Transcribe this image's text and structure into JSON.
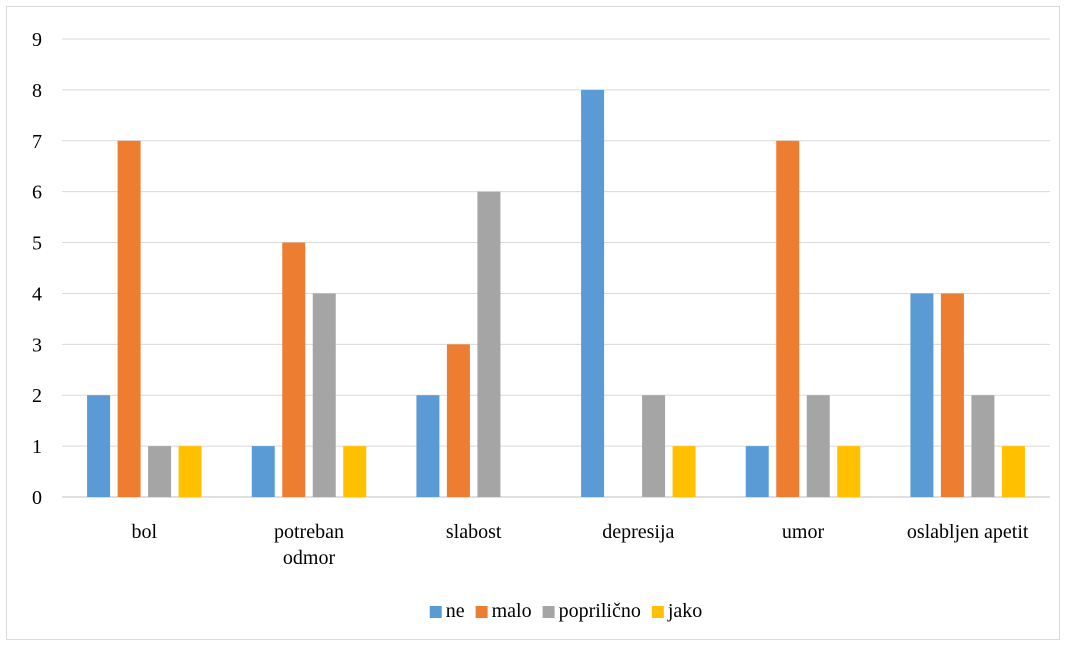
{
  "chart_data": {
    "type": "bar",
    "categories": [
      [
        "bol"
      ],
      [
        "potreban",
        "odmor"
      ],
      [
        "slabost"
      ],
      [
        "depresija"
      ],
      [
        "umor"
      ],
      [
        "oslabljen apetit"
      ]
    ],
    "series": [
      {
        "name": "ne",
        "color": "#5b9bd5",
        "values": [
          2,
          1,
          2,
          8,
          1,
          4
        ]
      },
      {
        "name": "malo",
        "color": "#ed7d31",
        "values": [
          7,
          5,
          3,
          0,
          7,
          4
        ]
      },
      {
        "name": "poprilično",
        "color": "#a5a5a5",
        "values": [
          1,
          4,
          6,
          2,
          2,
          2
        ]
      },
      {
        "name": "jako",
        "color": "#ffc000",
        "values": [
          1,
          1,
          0,
          1,
          1,
          1
        ]
      }
    ],
    "ylim": [
      0,
      9
    ],
    "yticks": [
      "0",
      "1",
      "2",
      "3",
      "4",
      "5",
      "6",
      "7",
      "8",
      "9"
    ],
    "grid": true,
    "legend": "bottom",
    "title": "",
    "xlabel": "",
    "ylabel": ""
  }
}
